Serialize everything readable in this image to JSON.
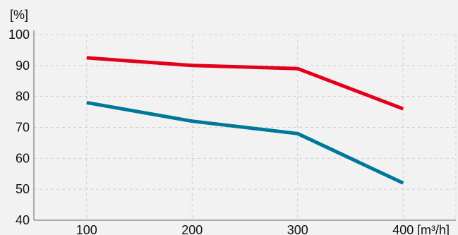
{
  "chart_data": {
    "type": "line",
    "x": [
      100,
      200,
      300,
      400
    ],
    "xlim": [
      50,
      450
    ],
    "ylim": [
      40,
      100
    ],
    "x_ticks": [
      100,
      200,
      300,
      400
    ],
    "y_ticks": [
      40,
      50,
      60,
      70,
      80,
      90,
      100
    ],
    "x_tick_labels": [
      "100",
      "200",
      "300",
      "400"
    ],
    "y_tick_labels": [
      "40",
      "50",
      "60",
      "70",
      "80",
      "90",
      "100"
    ],
    "ylabel": "[%]",
    "xunit": "[m³/h]",
    "grid": true,
    "series": [
      {
        "values": [
          92.5,
          90,
          89,
          76
        ],
        "color": "#e3001b"
      },
      {
        "values": [
          78,
          72,
          68,
          52
        ],
        "color": "#00789a"
      }
    ]
  }
}
